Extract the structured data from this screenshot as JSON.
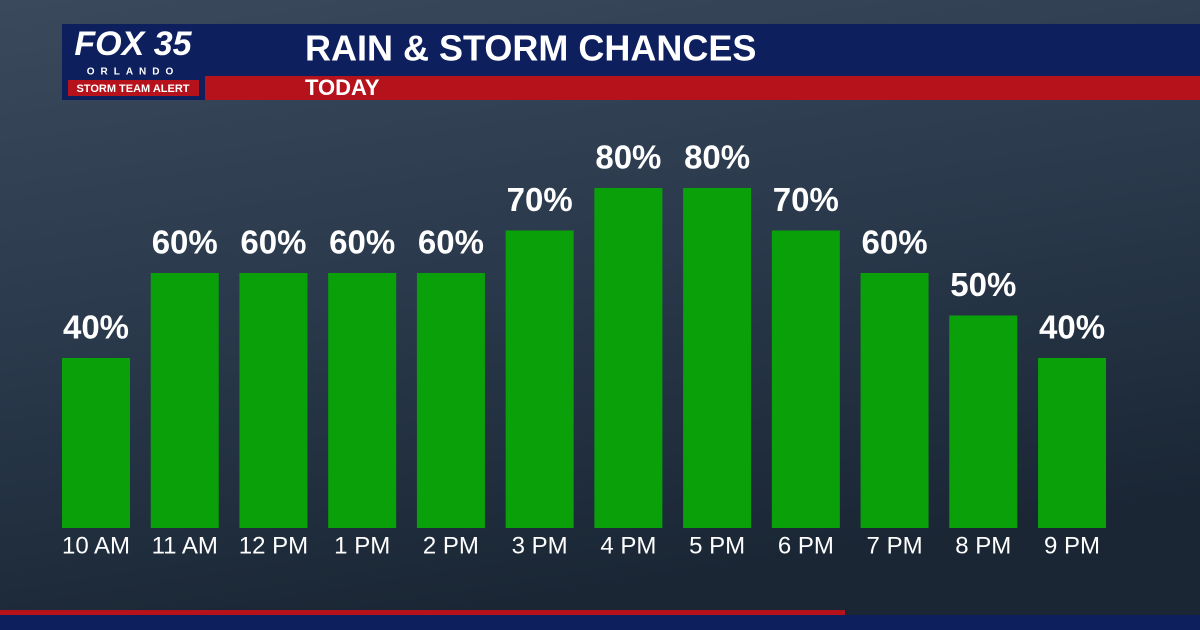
{
  "logo": {
    "name": "FOX 35",
    "city": "ORLANDO",
    "tag": "STORM TEAM ALERT"
  },
  "chart_data": {
    "type": "bar",
    "title": "RAIN & STORM CHANCES",
    "subtitle": "TODAY",
    "categories": [
      "10 AM",
      "11 AM",
      "12 PM",
      "1 PM",
      "2 PM",
      "3 PM",
      "4 PM",
      "5 PM",
      "6 PM",
      "7 PM",
      "8 PM",
      "9 PM"
    ],
    "values": [
      40,
      60,
      60,
      60,
      60,
      70,
      80,
      80,
      70,
      60,
      50,
      40
    ],
    "value_labels": [
      "40%",
      "60%",
      "60%",
      "60%",
      "60%",
      "70%",
      "80%",
      "80%",
      "70%",
      "60%",
      "50%",
      "40%"
    ],
    "color": "#0aa00a"
  }
}
